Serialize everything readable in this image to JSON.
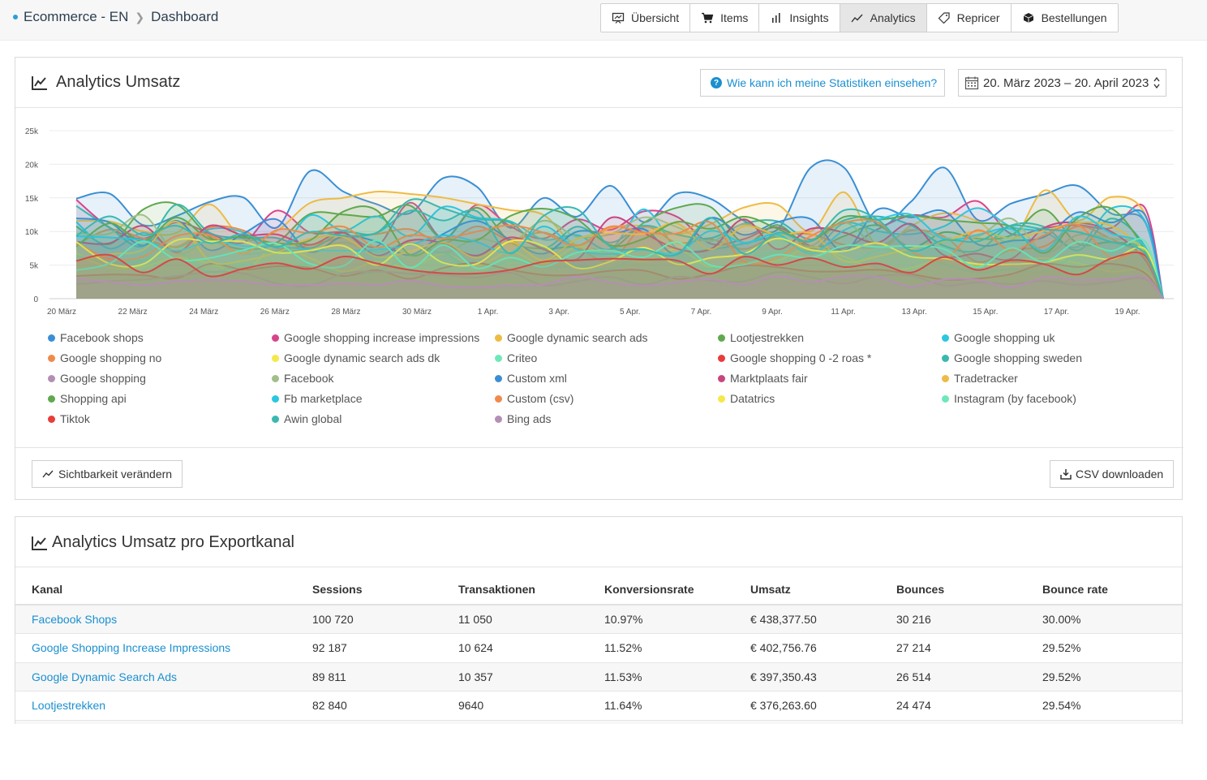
{
  "breadcrumb": {
    "shop": "Ecommerce - EN",
    "page": "Dashboard"
  },
  "nav": [
    {
      "label": "Übersicht",
      "icon": "presentation-icon"
    },
    {
      "label": "Items",
      "icon": "cart-icon"
    },
    {
      "label": "Insights",
      "icon": "bar-chart-icon"
    },
    {
      "label": "Analytics",
      "icon": "line-chart-icon",
      "active": true
    },
    {
      "label": "Repricer",
      "icon": "tag-icon"
    },
    {
      "label": "Bestellungen",
      "icon": "box-icon"
    }
  ],
  "analytics": {
    "title": "Analytics Umsatz",
    "help_label": "Wie kann ich meine Statistiken einsehen?",
    "date_range": "20. März 2023 – 20. April 2023",
    "visibility_label": "Sichtbarkeit verändern",
    "csv_label": "CSV downloaden"
  },
  "chart_data": {
    "type": "area",
    "y_ticks": [
      "0",
      "5k",
      "10k",
      "15k",
      "20k",
      "25k"
    ],
    "ylim": [
      0,
      25000
    ],
    "x_ticks": [
      "20 März",
      "22 März",
      "24 März",
      "26 März",
      "28 März",
      "30 März",
      "1 Apr.",
      "3 Apr.",
      "5 Apr.",
      "7 Apr.",
      "9 Apr.",
      "11 Apr.",
      "13 Apr.",
      "15 Apr.",
      "17 Apr.",
      "19 Apr."
    ],
    "grid": true,
    "legend_position": "bottom",
    "series": [
      {
        "name": "Facebook shops",
        "color": "#3a8fd4"
      },
      {
        "name": "Google shopping increase impressions",
        "color": "#d6458c"
      },
      {
        "name": "Google dynamic search ads",
        "color": "#eebb44"
      },
      {
        "name": "Lootjestrekken",
        "color": "#5fa84e"
      },
      {
        "name": "Google shopping uk",
        "color": "#2cc6e0"
      },
      {
        "name": "Google shopping no",
        "color": "#f08a4b"
      },
      {
        "name": "Google dynamic search ads dk",
        "color": "#f5e84a"
      },
      {
        "name": "Criteo",
        "color": "#6ee8b8"
      },
      {
        "name": "Google shopping 0 -2 roas *",
        "color": "#e83c3c"
      },
      {
        "name": "Google shopping sweden",
        "color": "#3ab8b0"
      },
      {
        "name": "Google shopping",
        "color": "#b48fb4"
      },
      {
        "name": "Facebook",
        "color": "#a2bf8a"
      },
      {
        "name": "Custom xml",
        "color": "#3a8fd4"
      },
      {
        "name": "Marktplaats fair",
        "color": "#c8467e"
      },
      {
        "name": "Tradetracker",
        "color": "#eebb44"
      },
      {
        "name": "Shopping api",
        "color": "#5fa84e"
      },
      {
        "name": "Fb marketplace",
        "color": "#2cc6e0"
      },
      {
        "name": "Custom (csv)",
        "color": "#f08a4b"
      },
      {
        "name": "Datatrics",
        "color": "#f5e84a"
      },
      {
        "name": "Instagram (by facebook)",
        "color": "#6ee8b8"
      },
      {
        "name": "Tiktok",
        "color": "#e83c3c"
      },
      {
        "name": "Awin global",
        "color": "#3ab8b0"
      },
      {
        "name": "Bing ads",
        "color": "#b48fb4"
      }
    ]
  },
  "per_channel": {
    "title": "Analytics Umsatz pro Exportkanal",
    "columns": [
      "Kanal",
      "Sessions",
      "Transaktionen",
      "Konversionsrate",
      "Umsatz",
      "Bounces",
      "Bounce rate"
    ],
    "rows": [
      [
        "Facebook Shops",
        "100 720",
        "11 050",
        "10.97%",
        "€ 438,377.50",
        "30 216",
        "30.00%"
      ],
      [
        "Google Shopping Increase Impressions",
        "92 187",
        "10 624",
        "11.52%",
        "€ 402,756.76",
        "27 214",
        "29.52%"
      ],
      [
        "Google Dynamic Search Ads",
        "89 811",
        "10 357",
        "11.53%",
        "€ 397,350.43",
        "26 514",
        "29.52%"
      ],
      [
        "Lootjestrekken",
        "82 840",
        "9640",
        "11.64%",
        "€ 376,263.60",
        "24 474",
        "29.54%"
      ],
      [
        "",
        "",
        "",
        "",
        "",
        "",
        ""
      ]
    ]
  }
}
